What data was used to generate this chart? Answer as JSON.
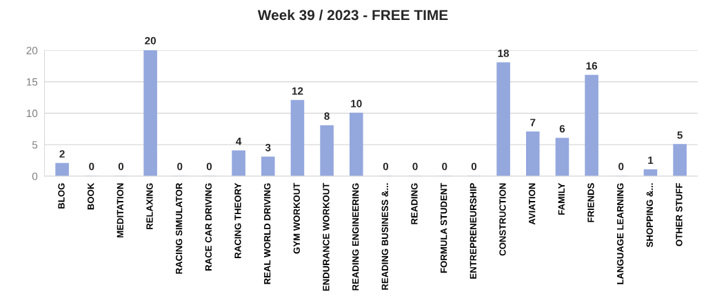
{
  "chart_data": {
    "type": "bar",
    "title": "Week 39 / 2023 - FREE TIME",
    "categories": [
      "BLOG",
      "BOOK",
      "MEDITATION",
      "RELAXING",
      "RACING SIMULATOR",
      "RACE CAR DRIVING",
      "RACING THEORY",
      "REAL WORLD DRIVING",
      "GYM WORKOUT",
      "ENDURANCE WORKOUT",
      "READING ENGINEERING",
      "READING BUSINESS &...",
      "READING",
      "FORMULA STUDENT",
      "ENTREPRENEURSHIP",
      "CONSTRUCTION",
      "AVIATION",
      "FAMILY",
      "FRIENDS",
      "LANGUAGE LEARNING",
      "SHOPPING &...",
      "OTHER STUFF"
    ],
    "values": [
      2,
      0,
      0,
      20,
      0,
      0,
      4,
      3,
      12,
      8,
      10,
      0,
      0,
      0,
      0,
      18,
      7,
      6,
      16,
      0,
      1,
      5
    ],
    "color": "#94a8de",
    "ylim": [
      0,
      20
    ],
    "yticks": [
      0,
      5,
      10,
      15,
      20
    ],
    "grid": "y",
    "data_labels": true
  }
}
